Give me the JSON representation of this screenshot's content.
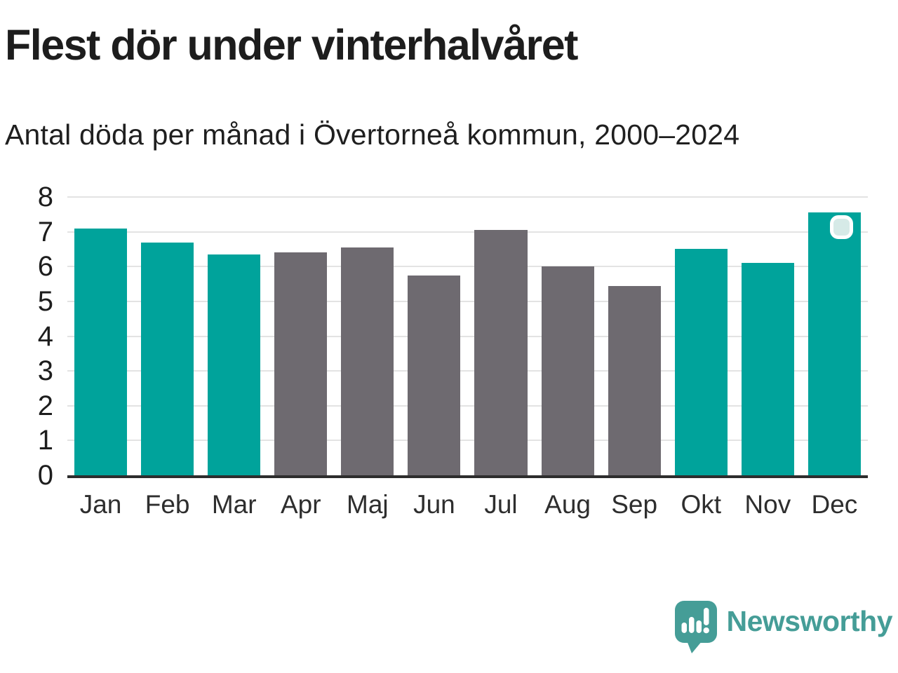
{
  "title": "Flest dör under vinterhalvåret",
  "subtitle": "Antal döda per månad i Övertorneå kommun, 2000–2024",
  "footer": {
    "brand": "Newsworthy"
  },
  "colors": {
    "winter": "#00a39b",
    "summer": "#6e6a70",
    "grid": "#e3e3e3",
    "axis": "#2d2d2d",
    "text": "#1d1d1d",
    "tick": "#1d1d1d",
    "xtick": "#2e2e2e",
    "logo": "#459d97",
    "badge_fill": "#d6eae7",
    "badge_border": "#ffffff"
  },
  "chart_data": {
    "type": "bar",
    "categories": [
      "Jan",
      "Feb",
      "Mar",
      "Apr",
      "Maj",
      "Jun",
      "Jul",
      "Aug",
      "Sep",
      "Okt",
      "Nov",
      "Dec"
    ],
    "values": [
      7.1,
      6.7,
      6.35,
      6.4,
      6.55,
      5.75,
      7.05,
      6.0,
      5.45,
      6.5,
      6.1,
      7.55
    ],
    "winter_months": [
      "Jan",
      "Feb",
      "Mar",
      "Okt",
      "Nov",
      "Dec"
    ],
    "highlight_badge_on": "Dec",
    "title": "Flest dör under vinterhalvåret",
    "subtitle": "Antal döda per månad i Övertorneå kommun, 2000–2024",
    "xlabel": "",
    "ylabel": "",
    "ylim": [
      0,
      8
    ],
    "yticks": [
      0,
      1,
      2,
      3,
      4,
      5,
      6,
      7,
      8
    ],
    "grid": true,
    "legend": false
  }
}
